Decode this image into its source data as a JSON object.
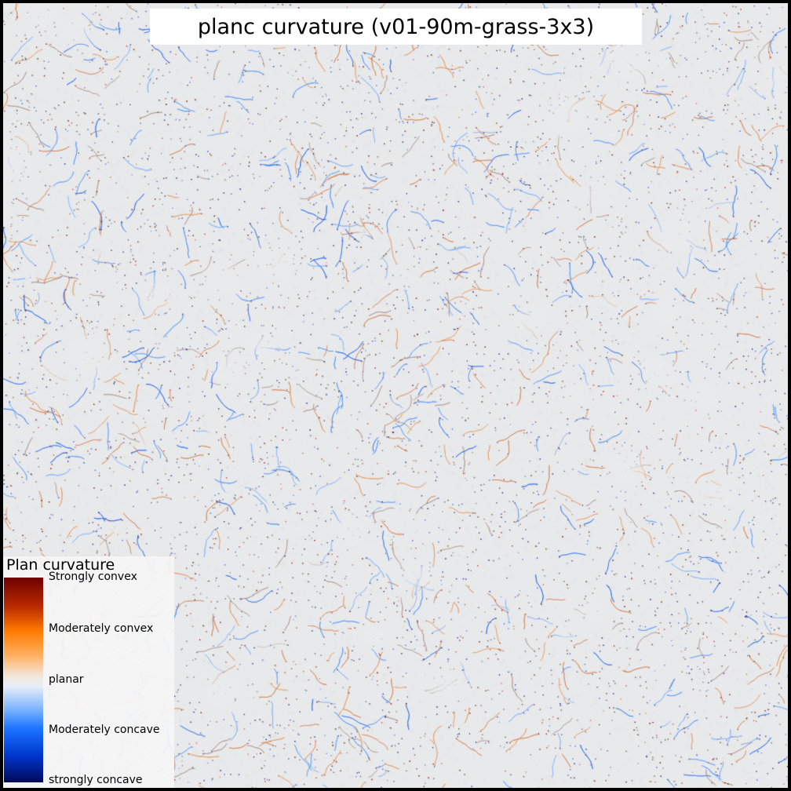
{
  "map": {
    "title": "planc curvature (v01-90m-grass-3x3)",
    "background_color": "#e8e9ea",
    "layer": "plan-curvature-raster"
  },
  "legend": {
    "title": "Plan curvature",
    "labels": [
      "Strongly convex",
      "Moderately convex",
      "planar",
      "Moderately concave",
      "strongly concave"
    ],
    "colors": {
      "strongly_convex": "#6e0000",
      "moderately_convex": "#ff7a00",
      "planar": "#eeeeee",
      "moderately_concave": "#1a72ff",
      "strongly_concave": "#00085a"
    }
  }
}
